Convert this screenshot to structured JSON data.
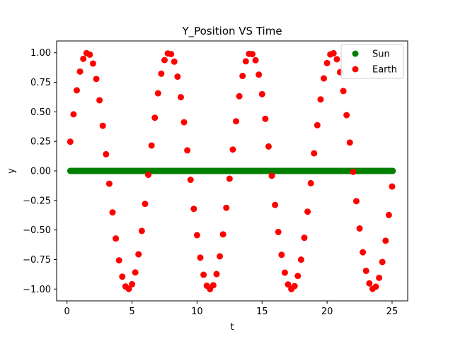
{
  "chart_data": {
    "type": "scatter",
    "title": "Y_Position VS Time",
    "xlabel": "t",
    "ylabel": "y",
    "xlim": [
      -0.8,
      26.2
    ],
    "ylim": [
      -1.1,
      1.1
    ],
    "xticks": [
      0,
      5,
      10,
      15,
      20,
      25
    ],
    "yticks": [
      -1.0,
      -0.75,
      -0.5,
      -0.25,
      0.0,
      0.25,
      0.5,
      0.75,
      1.0
    ],
    "xtick_labels": [
      "0",
      "5",
      "10",
      "15",
      "20",
      "25"
    ],
    "ytick_labels": [
      "−1.00",
      "−0.75",
      "−0.50",
      "−0.25",
      "0.00",
      "0.25",
      "0.50",
      "0.75",
      "1.00"
    ],
    "legend_position": "top-right",
    "grid": false,
    "series": [
      {
        "name": "Sun",
        "color": "#008000",
        "x_start": 0.25,
        "x_end": 25.0,
        "x_step": 0.1,
        "y_constant": 0.0
      },
      {
        "name": "Earth",
        "color": "#ff0000",
        "x": [
          0.25,
          0.5,
          0.75,
          1.0,
          1.25,
          1.5,
          1.75,
          2.0,
          2.25,
          2.5,
          2.75,
          3.0,
          3.25,
          3.5,
          3.75,
          4.0,
          4.25,
          4.5,
          4.75,
          5.0,
          5.25,
          5.5,
          5.75,
          6.0,
          6.25,
          6.5,
          6.75,
          7.0,
          7.25,
          7.5,
          7.75,
          8.0,
          8.25,
          8.5,
          8.75,
          9.0,
          9.25,
          9.5,
          9.75,
          10.0,
          10.25,
          10.5,
          10.75,
          11.0,
          11.25,
          11.5,
          11.75,
          12.0,
          12.25,
          12.5,
          12.75,
          13.0,
          13.25,
          13.5,
          13.75,
          14.0,
          14.25,
          14.5,
          14.75,
          15.0,
          15.25,
          15.5,
          15.75,
          16.0,
          16.25,
          16.5,
          16.75,
          17.0,
          17.25,
          17.5,
          17.75,
          18.0,
          18.25,
          18.5,
          18.75,
          19.0,
          19.25,
          19.5,
          19.75,
          20.0,
          20.25,
          20.5,
          20.75,
          21.0,
          21.25,
          21.5,
          21.75,
          22.0,
          22.25,
          22.5,
          22.75,
          23.0,
          23.25,
          23.5,
          23.75,
          24.0,
          24.25,
          24.5,
          24.75,
          25.0
        ],
        "y": [
          0.247,
          0.479,
          0.682,
          0.841,
          0.949,
          0.997,
          0.984,
          0.909,
          0.778,
          0.598,
          0.382,
          0.141,
          -0.108,
          -0.351,
          -0.572,
          -0.757,
          -0.895,
          -0.978,
          -0.999,
          -0.959,
          -0.859,
          -0.706,
          -0.508,
          -0.279,
          -0.033,
          0.215,
          0.45,
          0.657,
          0.823,
          0.938,
          0.994,
          0.989,
          0.925,
          0.798,
          0.624,
          0.412,
          0.174,
          -0.075,
          -0.321,
          -0.544,
          -0.734,
          -0.879,
          -0.972,
          -1.0,
          -0.968,
          -0.873,
          -0.723,
          -0.537,
          -0.312,
          -0.066,
          0.181,
          0.42,
          0.632,
          0.804,
          0.928,
          0.991,
          0.989,
          0.937,
          0.815,
          0.65,
          0.441,
          0.207,
          -0.041,
          -0.288,
          -0.517,
          -0.71,
          -0.861,
          -0.961,
          -1.0,
          -0.975,
          -0.889,
          -0.751,
          -0.566,
          -0.345,
          -0.104,
          0.149,
          0.387,
          0.605,
          0.783,
          0.913,
          0.986,
          0.996,
          0.945,
          0.836,
          0.676,
          0.472,
          0.24,
          -0.008,
          -0.256,
          -0.487,
          -0.689,
          -0.846,
          -0.952,
          -0.998,
          -0.98,
          -0.905,
          -0.771,
          -0.591,
          -0.373,
          -0.132
        ]
      }
    ]
  }
}
